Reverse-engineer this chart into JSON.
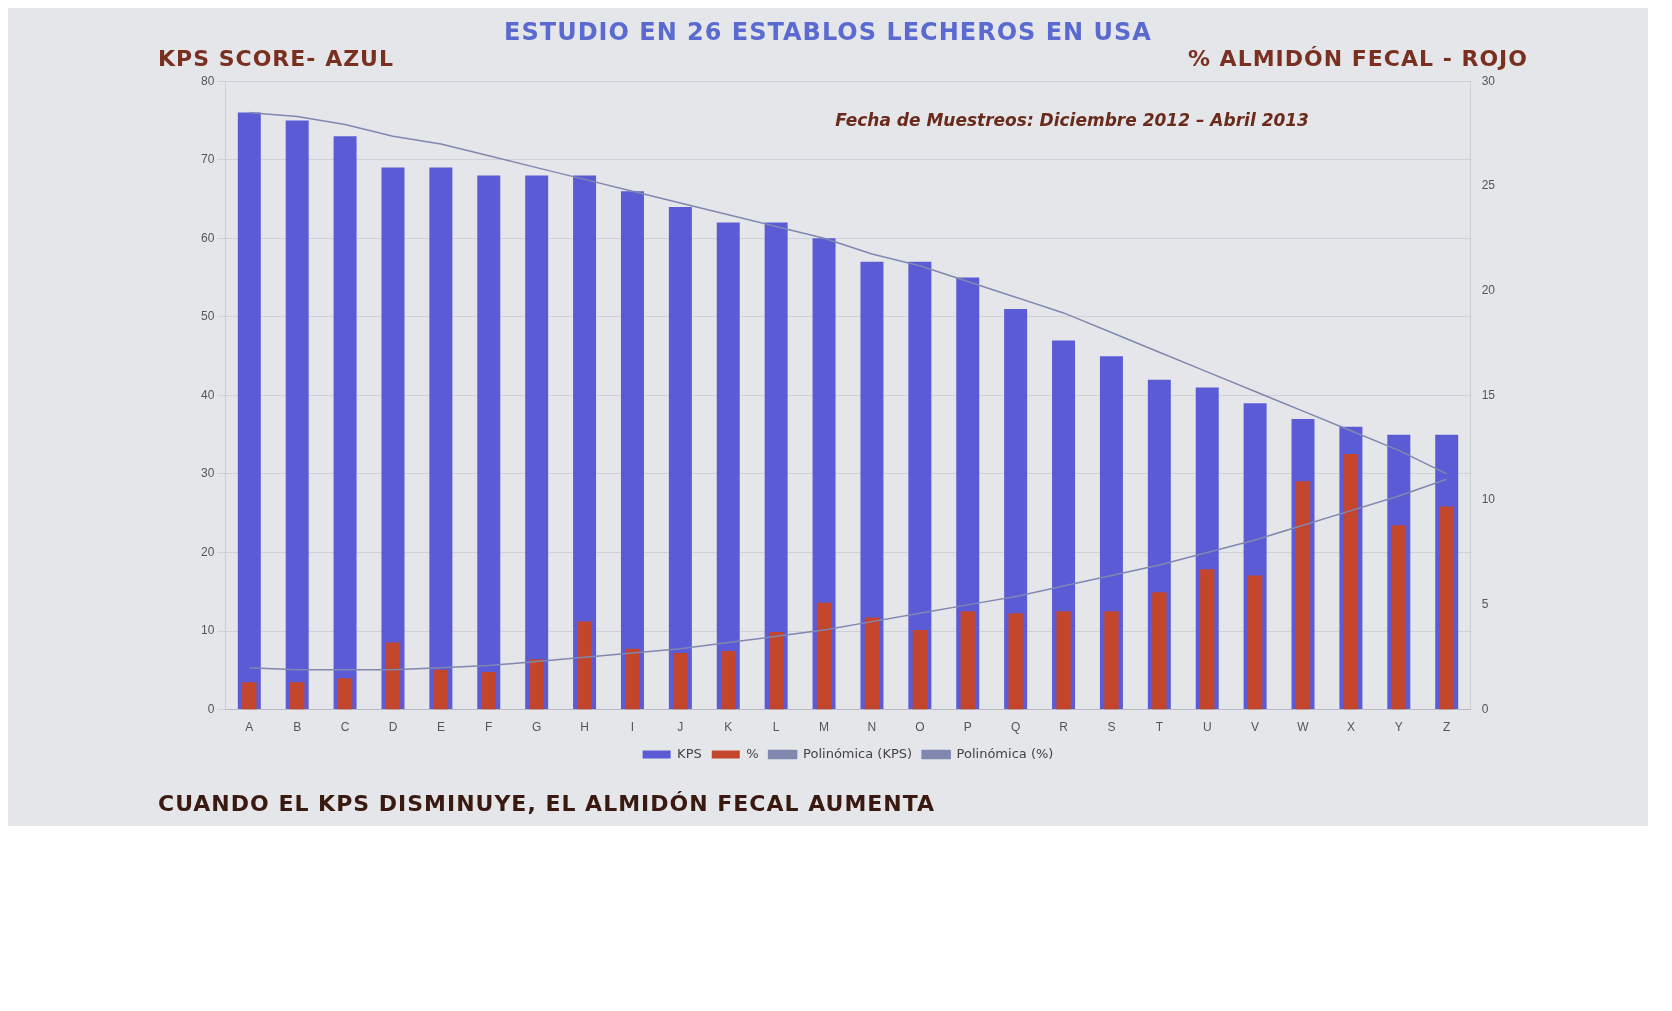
{
  "chart_data": {
    "type": "bar",
    "title": "ESTUDIO EN 26 ESTABLOS LECHEROS EN USA",
    "ylabel": "KPS SCORE- AZUL",
    "y2label": "% ALMIDÓN FECAL - ROJO",
    "annotations": [
      "Fecha de Muestreos: Diciembre 2012 – Abril 2013",
      "CUANDO EL KPS DISMINUYE, EL ALMIDÓN FECAL AUMENTA"
    ],
    "categories": [
      "A",
      "B",
      "C",
      "D",
      "E",
      "F",
      "G",
      "H",
      "I",
      "J",
      "K",
      "L",
      "M",
      "N",
      "O",
      "P",
      "Q",
      "R",
      "S",
      "T",
      "U",
      "V",
      "W",
      "X",
      "Y",
      "Z"
    ],
    "series": [
      {
        "name": "KPS",
        "color": "#5b5bd6",
        "values": [
          76,
          75,
          73,
          69,
          69,
          68,
          68,
          68,
          66,
          64,
          62,
          62,
          60,
          57,
          57,
          55,
          51,
          47,
          45,
          42,
          41,
          39,
          37,
          36,
          35,
          35
        ]
      },
      {
        "name": "%",
        "axis": "y2",
        "color": "#c2452c",
        "values": [
          1.3,
          1.3,
          1.5,
          3.2,
          1.9,
          1.8,
          2.4,
          4.2,
          2.9,
          2.7,
          2.8,
          3.7,
          5.1,
          4.4,
          3.8,
          4.7,
          4.6,
          4.7,
          4.7,
          5.6,
          6.7,
          6.4,
          10.9,
          12.2,
          8.8,
          9.7
        ]
      },
      {
        "name": "Polinómica (KPS)",
        "type": "line",
        "color": "#8088b0",
        "values": [
          76,
          75.5,
          74.5,
          73,
          72,
          70.5,
          69,
          67.5,
          66,
          64.5,
          63,
          61.5,
          60,
          58,
          56.5,
          54.5,
          52.5,
          50.5,
          48,
          45.5,
          43,
          40.5,
          38,
          35.5,
          33,
          30
        ]
      },
      {
        "name": "Polinómica (%)",
        "type": "line",
        "axis": "y2",
        "color": "#8088b0",
        "values": [
          2.0,
          1.9,
          1.9,
          1.9,
          2.0,
          2.1,
          2.3,
          2.5,
          2.7,
          2.9,
          3.2,
          3.5,
          3.8,
          4.2,
          4.6,
          5.0,
          5.4,
          5.9,
          6.4,
          6.9,
          7.5,
          8.1,
          8.8,
          9.5,
          10.2,
          11.0
        ]
      }
    ],
    "ylim": [
      0,
      80
    ],
    "yticks": [
      0,
      10,
      20,
      30,
      40,
      50,
      60,
      70,
      80
    ],
    "y2lim": [
      0,
      30
    ],
    "y2ticks": [
      0,
      5,
      10,
      15,
      20,
      25,
      30
    ],
    "grid": "y",
    "legend": "bottom",
    "marker": "none"
  }
}
